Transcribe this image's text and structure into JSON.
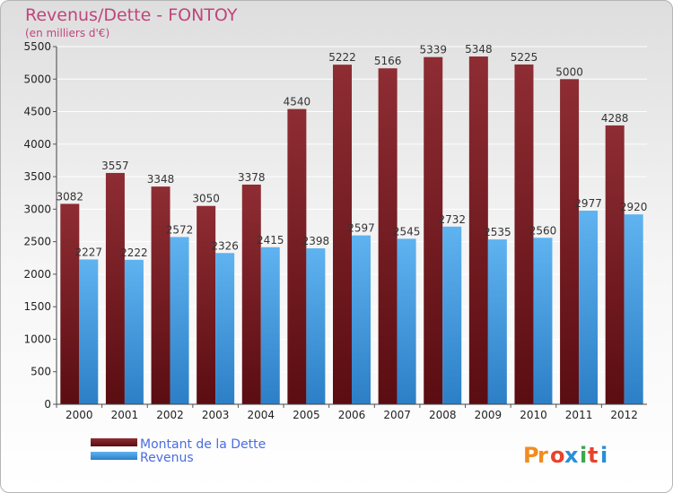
{
  "chart_data": {
    "type": "bar",
    "title": "Revenus/Dette - FONTOY",
    "subtitle": "(en milliers d'€)",
    "categories": [
      "2000",
      "2001",
      "2002",
      "2003",
      "2004",
      "2005",
      "2006",
      "2007",
      "2008",
      "2009",
      "2010",
      "2011",
      "2012"
    ],
    "series": [
      {
        "name": "Montant de la Dette",
        "color": "#7b1f24",
        "values": [
          3082,
          3557,
          3348,
          3050,
          3378,
          4540,
          5222,
          5166,
          5339,
          5348,
          5225,
          5000,
          4288
        ]
      },
      {
        "name": "Revenus",
        "color": "#4ca3e6",
        "values": [
          2227,
          2222,
          2572,
          2326,
          2415,
          2398,
          2597,
          2545,
          2732,
          2535,
          2560,
          2977,
          2920
        ]
      }
    ],
    "ylim": [
      0,
      5500
    ],
    "yticks": [
      0,
      500,
      1000,
      1500,
      2000,
      2500,
      3000,
      3500,
      4000,
      4500,
      5000,
      5500
    ],
    "grid": true,
    "legend": "bottom-left"
  },
  "logo": {
    "text": "Proxiti",
    "letters": [
      "P",
      "r",
      "o",
      "x",
      "i",
      "t",
      "i"
    ],
    "colors": [
      "#f28c1e",
      "#f28c1e",
      "#e8432a",
      "#2a8fd6",
      "#3aa84b",
      "#e8432a",
      "#2a8fd6"
    ]
  }
}
